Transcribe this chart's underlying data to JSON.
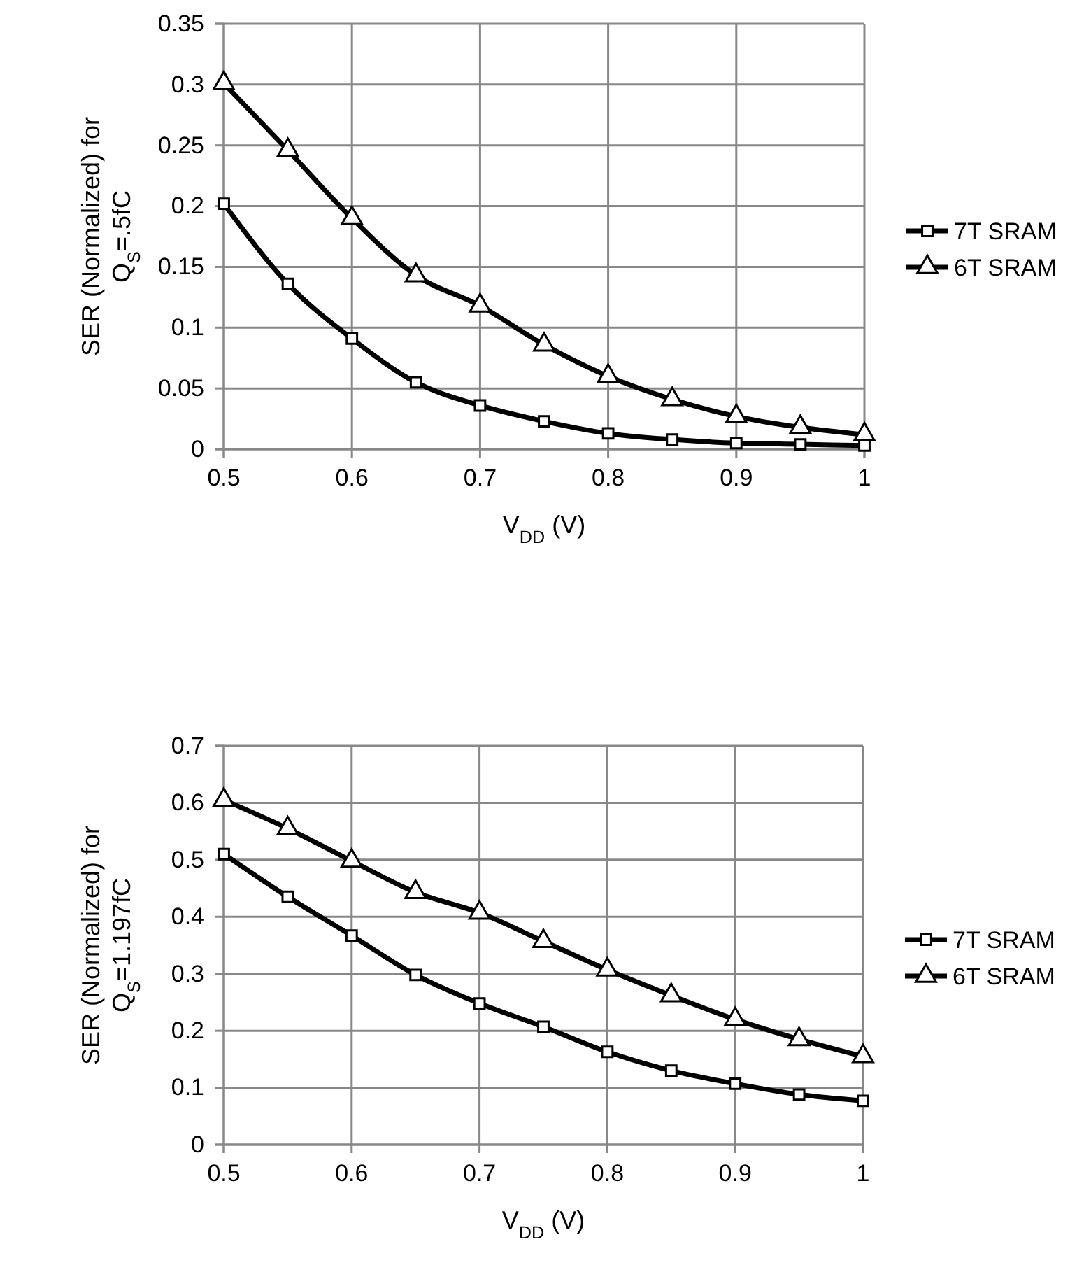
{
  "chart_data": [
    {
      "type": "line",
      "xlabel": "V$_{DD}$ (V)",
      "ylabel": "SER (Normalized) for\nQ$_{S}$=.5fC",
      "x": [
        0.5,
        0.55,
        0.6,
        0.65,
        0.7,
        0.75,
        0.8,
        0.85,
        0.9,
        0.95,
        1
      ],
      "xlim": [
        0.5,
        1
      ],
      "xticks": [
        0.5,
        0.6,
        0.7,
        0.8,
        0.9,
        1
      ],
      "ylim": [
        0,
        0.35
      ],
      "yticks": [
        0,
        0.05,
        0.1,
        0.15,
        0.2,
        0.25,
        0.3,
        0.35
      ],
      "grid": true,
      "legend": "right",
      "line_style": "solid",
      "series": [
        {
          "name": "7T SRAM",
          "color": "#000000",
          "marker": "square",
          "values": [
            0.202,
            0.136,
            0.091,
            0.055,
            0.036,
            0.023,
            0.013,
            0.008,
            0.005,
            0.004,
            0.003
          ]
        },
        {
          "name": "6T SRAM",
          "color": "#000000",
          "marker": "triangle",
          "values": [
            0.301,
            0.246,
            0.19,
            0.143,
            0.118,
            0.086,
            0.06,
            0.041,
            0.027,
            0.018,
            0.012
          ]
        }
      ]
    },
    {
      "type": "line",
      "xlabel": "V$_{DD}$ (V)",
      "ylabel": "SER (Normalized) for\nQ$_{S}$=1.197fC",
      "x": [
        0.5,
        0.55,
        0.6,
        0.65,
        0.7,
        0.75,
        0.8,
        0.85,
        0.9,
        0.95,
        1
      ],
      "xlim": [
        0.5,
        1
      ],
      "xticks": [
        0.5,
        0.6,
        0.7,
        0.8,
        0.9,
        1
      ],
      "ylim": [
        0,
        0.7
      ],
      "yticks": [
        0,
        0.1,
        0.2,
        0.3,
        0.4,
        0.5,
        0.6,
        0.7
      ],
      "grid": true,
      "legend": "right",
      "line_style": "solid",
      "series": [
        {
          "name": "7T SRAM",
          "color": "#000000",
          "marker": "square",
          "values": [
            0.51,
            0.435,
            0.367,
            0.298,
            0.248,
            0.207,
            0.163,
            0.13,
            0.107,
            0.088,
            0.077
          ]
        },
        {
          "name": "6T SRAM",
          "color": "#000000",
          "marker": "triangle",
          "values": [
            0.605,
            0.555,
            0.498,
            0.443,
            0.407,
            0.357,
            0.307,
            0.262,
            0.22,
            0.185,
            0.155
          ]
        }
      ]
    }
  ]
}
